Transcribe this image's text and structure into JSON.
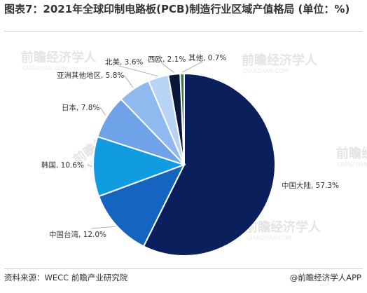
{
  "chart_data": {
    "type": "pie",
    "title": "图表7：2021年全球印制电路板(PCB)制造行业区域产值格局 (单位：%)",
    "categories": [
      "中国大陆",
      "中国台湾",
      "韩国",
      "日本",
      "亚洲其他地区",
      "北美",
      "西欧",
      "其他"
    ],
    "values": [
      57.3,
      12.0,
      10.6,
      7.8,
      5.8,
      3.6,
      2.1,
      0.7
    ],
    "labels": [
      "中国大陆, 57.3%",
      "中国台湾, 12.0%",
      "韩国, 10.6%",
      "日本, 7.8%",
      "亚洲其他地区, 5.8%",
      "北美, 3.6%",
      "西欧, 2.1%",
      "其他, 0.7%"
    ],
    "colors": [
      "#0a1f5c",
      "#1565c0",
      "#119be0",
      "#6fa3e8",
      "#90b9ef",
      "#b8d3f5",
      "#08173a",
      "#2e7d32"
    ],
    "unit": "%"
  },
  "footer": {
    "source": "资料来源：WECC 前瞻产业研究院",
    "brand": "@前瞻经济学人APP"
  },
  "watermark": {
    "text": "前瞻经济学人",
    "sub": "QIANZHAN.COM"
  }
}
